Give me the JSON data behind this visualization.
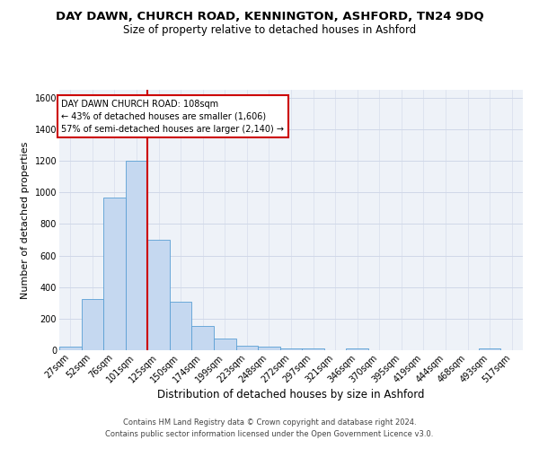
{
  "title": "DAY DAWN, CHURCH ROAD, KENNINGTON, ASHFORD, TN24 9DQ",
  "subtitle": "Size of property relative to detached houses in Ashford",
  "xlabel": "Distribution of detached houses by size in Ashford",
  "ylabel": "Number of detached properties",
  "footer_line1": "Contains HM Land Registry data © Crown copyright and database right 2024.",
  "footer_line2": "Contains public sector information licensed under the Open Government Licence v3.0.",
  "annotation_line1": "DAY DAWN CHURCH ROAD: 108sqm",
  "annotation_line2": "← 43% of detached houses are smaller (1,606)",
  "annotation_line3": "57% of semi-detached houses are larger (2,140) →",
  "bar_values": [
    25,
    325,
    970,
    1200,
    700,
    305,
    155,
    75,
    30,
    20,
    13,
    10,
    0,
    12,
    0,
    0,
    0,
    0,
    0,
    10,
    0
  ],
  "categories": [
    "27sqm",
    "52sqm",
    "76sqm",
    "101sqm",
    "125sqm",
    "150sqm",
    "174sqm",
    "199sqm",
    "223sqm",
    "248sqm",
    "272sqm",
    "297sqm",
    "321sqm",
    "346sqm",
    "370sqm",
    "395sqm",
    "419sqm",
    "444sqm",
    "468sqm",
    "493sqm",
    "517sqm"
  ],
  "bar_color": "#c5d8f0",
  "bar_edge_color": "#5a9fd4",
  "grid_color": "#d0d8e8",
  "background_color": "#eef2f8",
  "vline_color": "#cc0000",
  "annotation_box_edge": "#cc0000",
  "ylim": [
    0,
    1650
  ],
  "yticks": [
    0,
    200,
    400,
    600,
    800,
    1000,
    1200,
    1400,
    1600
  ],
  "title_fontsize": 9.5,
  "subtitle_fontsize": 8.5,
  "xlabel_fontsize": 8.5,
  "ylabel_fontsize": 8,
  "tick_fontsize": 7,
  "annotation_fontsize": 7,
  "footer_fontsize": 6
}
